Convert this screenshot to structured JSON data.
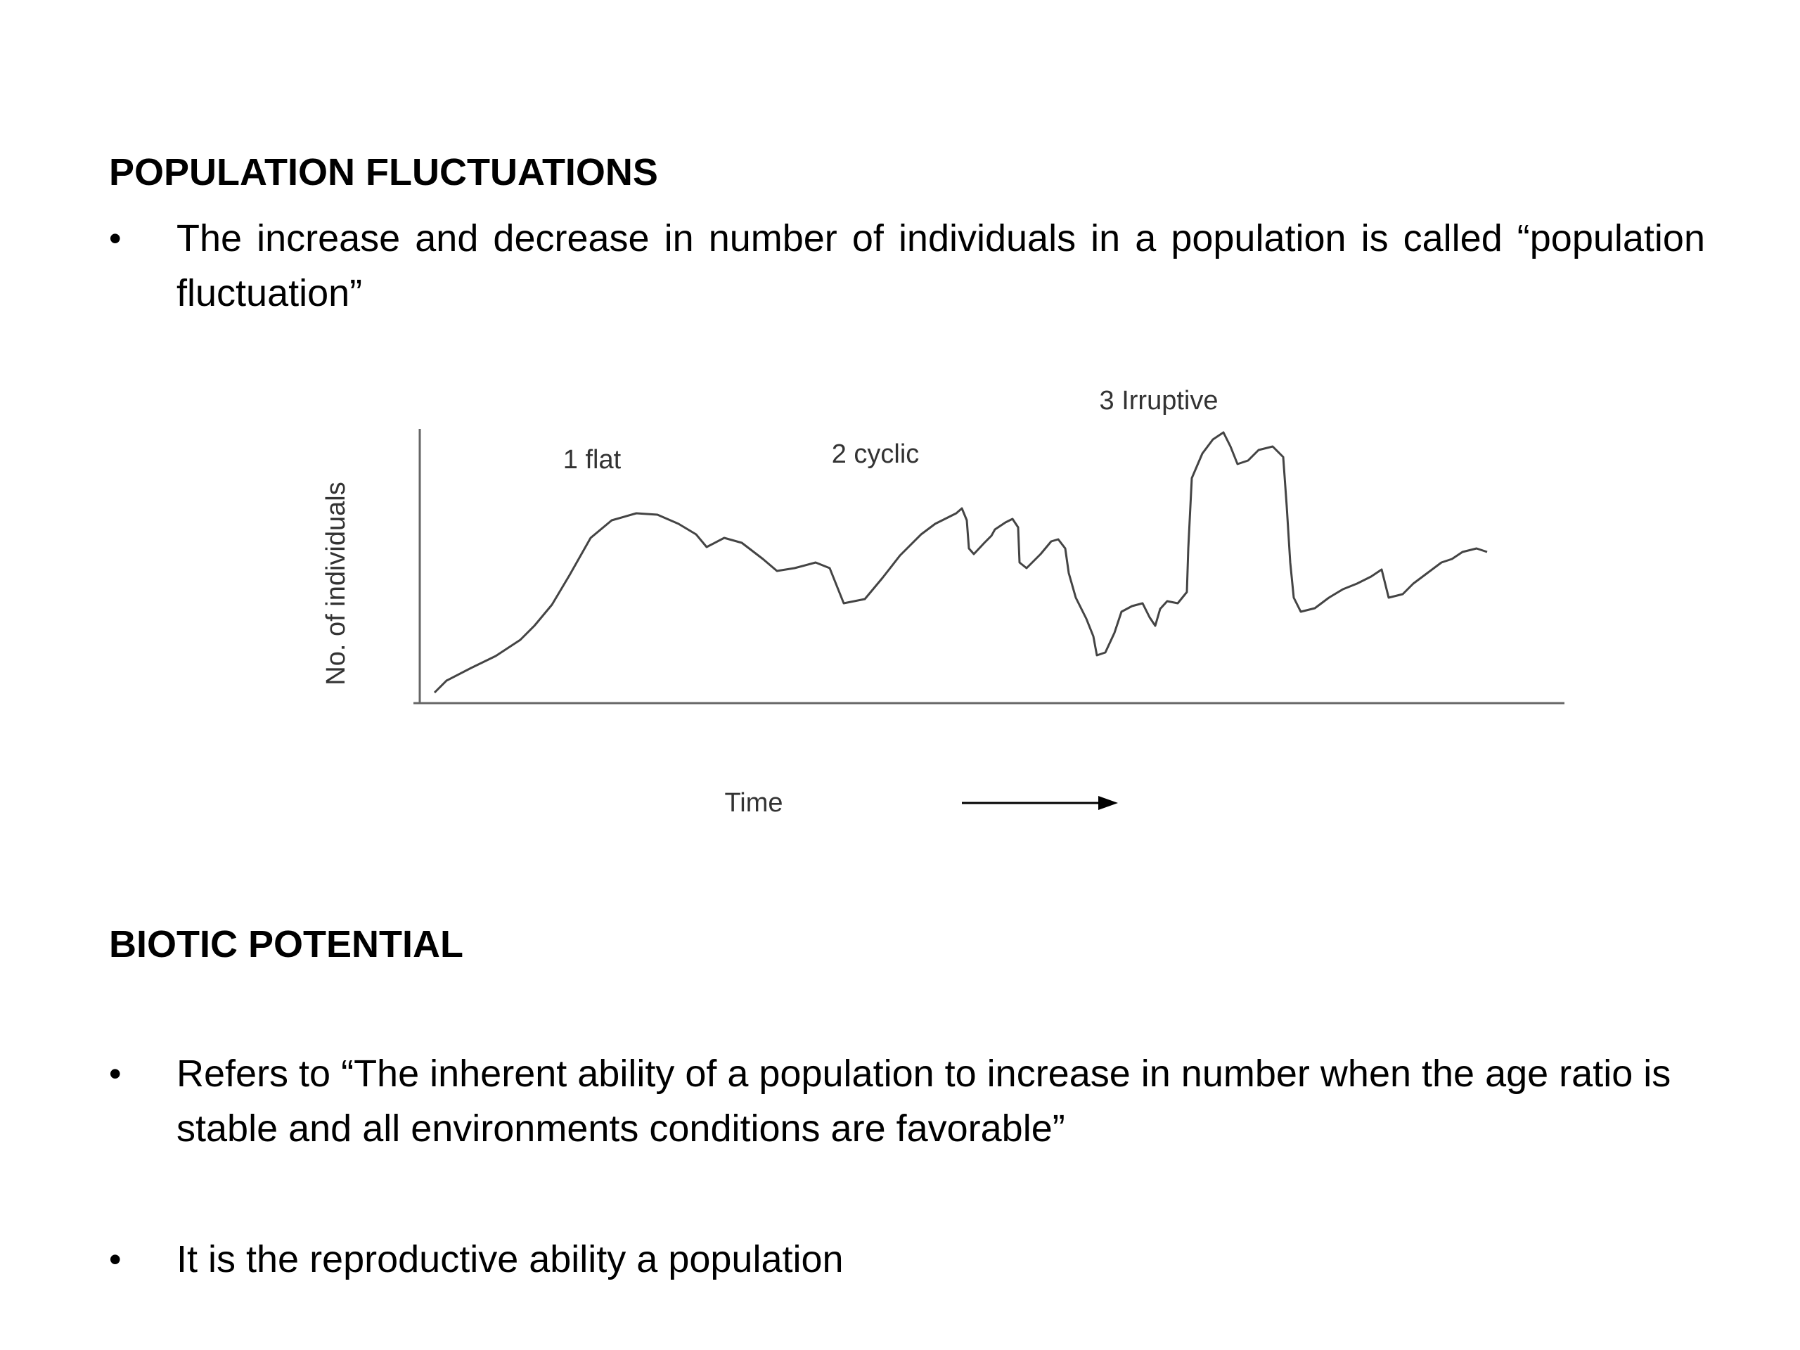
{
  "section1": {
    "heading": "POPULATION FLUCTUATIONS",
    "bullets": [
      "The increase and decrease in number of individuals in a population is called “population fluctuation”"
    ]
  },
  "figure": {
    "ylabel": "No. of individuals",
    "xlabel": "Time",
    "labels": [
      "1 flat",
      "2 cyclic",
      "3 Irruptive"
    ]
  },
  "section2": {
    "heading": "BIOTIC POTENTIAL",
    "bullets": [
      "Refers to “The inherent ability of a population to increase in number when the age ratio is stable and all environments conditions are favorable”",
      "It is the reproductive ability a population"
    ]
  },
  "colors": {
    "text": "#000000",
    "figure_text": "#333333",
    "curve": "#444444",
    "axis": "#666666"
  }
}
